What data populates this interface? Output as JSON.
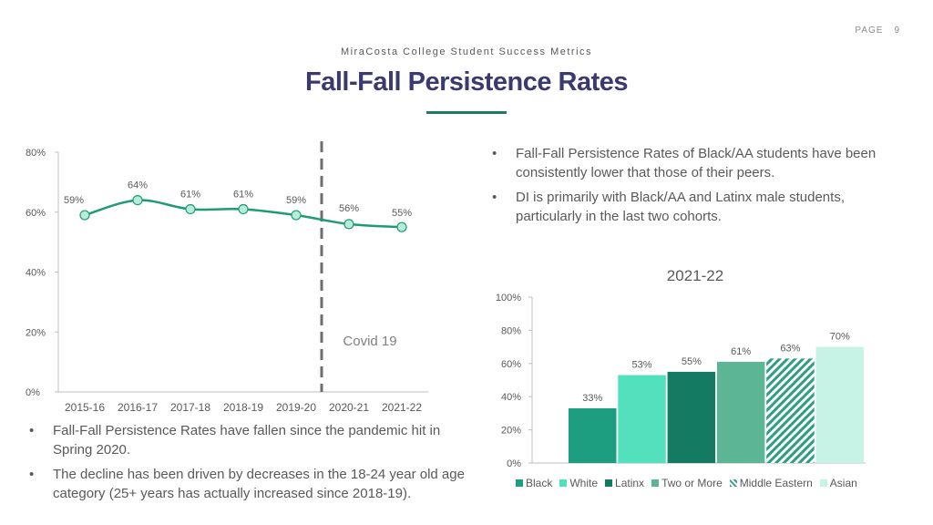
{
  "header": {
    "page_label": "PAGE",
    "page_number": "9",
    "subtitle": "MiraCosta College Student Success Metrics",
    "title": "Fall-Fall Persistence Rates"
  },
  "bullets_top": [
    "Fall-Fall Persistence Rates of Black/AA students have been consistently lower that those of their peers.",
    "DI is primarily with Black/AA and Latinx male students, particularly in the last two cohorts."
  ],
  "bullets_bottom": [
    "Fall-Fall Persistence Rates have fallen since the pandemic hit in Spring 2020.",
    "The decline has been driven by decreases in the 18-24 year old age category (25+ years has actually increased since 2018-19)."
  ],
  "chart_data": [
    {
      "type": "line",
      "categories": [
        "2015-16",
        "2016-17",
        "2017-18",
        "2018-19",
        "2019-20",
        "2020-21",
        "2021-22"
      ],
      "values": [
        59,
        64,
        61,
        61,
        59,
        56,
        55
      ],
      "data_labels": [
        "59%",
        "64%",
        "61%",
        "61%",
        "59%",
        "56%",
        "55%"
      ],
      "y_ticks": [
        "0%",
        "20%",
        "40%",
        "60%",
        "80%"
      ],
      "ylim": [
        0,
        80
      ],
      "line_color": "#1f9a77",
      "marker_color": "#b7ecd8",
      "annotation": {
        "text": "Covid 19",
        "between": [
          "2019-20",
          "2020-21"
        ]
      },
      "grid": false
    },
    {
      "type": "bar",
      "title": "2021-22",
      "categories": [
        "Black",
        "White",
        "Latinx",
        "Two or More",
        "Middle Eastern",
        "Asian"
      ],
      "values": [
        33,
        53,
        55,
        61,
        63,
        70
      ],
      "data_labels": [
        "33%",
        "53%",
        "55%",
        "61%",
        "63%",
        "70%"
      ],
      "colors": [
        "#1e9e80",
        "#52e0bd",
        "#147a61",
        "#5cb695",
        "hatch",
        "#c7f3e7"
      ],
      "y_ticks": [
        "0%",
        "20%",
        "40%",
        "60%",
        "80%",
        "100%"
      ],
      "ylim": [
        0,
        100
      ],
      "legend_position": "bottom",
      "grid": false
    }
  ]
}
